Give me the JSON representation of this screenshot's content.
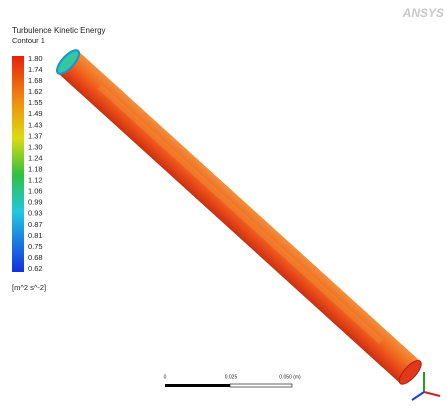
{
  "logo": "ANSYS",
  "legend": {
    "title": "Turbulence Kinetic Energy",
    "subtitle": "Contour 1",
    "labels": [
      "1.80",
      "1.74",
      "1.68",
      "1.62",
      "1.55",
      "1.49",
      "1.43",
      "1.37",
      "1.30",
      "1.24",
      "1.18",
      "1.12",
      "1.06",
      "0.99",
      "0.93",
      "0.87",
      "0.81",
      "0.75",
      "0.68",
      "0.62"
    ],
    "unit": "[m^2 s^-2]"
  },
  "scale_bar": {
    "labels": [
      "0",
      "0.025",
      "0.050 (m)"
    ]
  }
}
